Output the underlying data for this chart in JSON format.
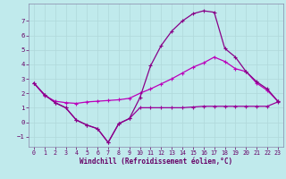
{
  "xlabel": "Windchill (Refroidissement éolien,°C)",
  "background_color": "#c0eaec",
  "grid_color": "#b0d8da",
  "line_color1": "#990099",
  "line_color2": "#bb00bb",
  "line_color3": "#880088",
  "xlim": [
    -0.5,
    23.5
  ],
  "ylim": [
    -1.7,
    8.2
  ],
  "yticks": [
    -1,
    0,
    1,
    2,
    3,
    4,
    5,
    6,
    7
  ],
  "xticks": [
    0,
    1,
    2,
    3,
    4,
    5,
    6,
    7,
    8,
    9,
    10,
    11,
    12,
    13,
    14,
    15,
    16,
    17,
    18,
    19,
    20,
    21,
    22,
    23
  ],
  "line1_x": [
    0,
    1,
    2,
    3,
    4,
    5,
    6,
    7,
    8,
    9,
    10,
    11,
    12,
    13,
    14,
    15,
    16,
    17,
    18,
    19,
    20,
    21,
    22,
    23
  ],
  "line1_y": [
    2.7,
    1.9,
    1.35,
    1.0,
    0.15,
    -0.2,
    -0.45,
    -1.4,
    -0.1,
    0.25,
    1.0,
    1.0,
    1.0,
    1.0,
    1.0,
    1.05,
    1.1,
    1.1,
    1.1,
    1.1,
    1.1,
    1.1,
    1.1,
    1.4
  ],
  "line2_x": [
    0,
    1,
    2,
    3,
    4,
    5,
    6,
    7,
    8,
    9,
    10,
    11,
    12,
    13,
    14,
    15,
    16,
    17,
    18,
    19,
    20,
    21,
    22,
    23
  ],
  "line2_y": [
    2.7,
    1.85,
    1.45,
    1.35,
    1.3,
    1.4,
    1.45,
    1.5,
    1.55,
    1.65,
    2.0,
    2.3,
    2.65,
    3.0,
    3.4,
    3.8,
    4.1,
    4.5,
    4.2,
    3.7,
    3.5,
    2.7,
    2.2,
    1.45
  ],
  "line3_x": [
    0,
    1,
    2,
    3,
    4,
    5,
    6,
    7,
    8,
    9,
    10,
    11,
    12,
    13,
    14,
    15,
    16,
    17,
    18,
    19,
    20,
    21,
    22,
    23
  ],
  "line3_y": [
    2.7,
    1.9,
    1.35,
    1.0,
    0.15,
    -0.2,
    -0.45,
    -1.4,
    -0.1,
    0.25,
    1.7,
    3.9,
    5.3,
    6.3,
    7.0,
    7.5,
    7.7,
    7.6,
    5.1,
    4.5,
    3.5,
    2.8,
    2.3,
    1.45
  ]
}
